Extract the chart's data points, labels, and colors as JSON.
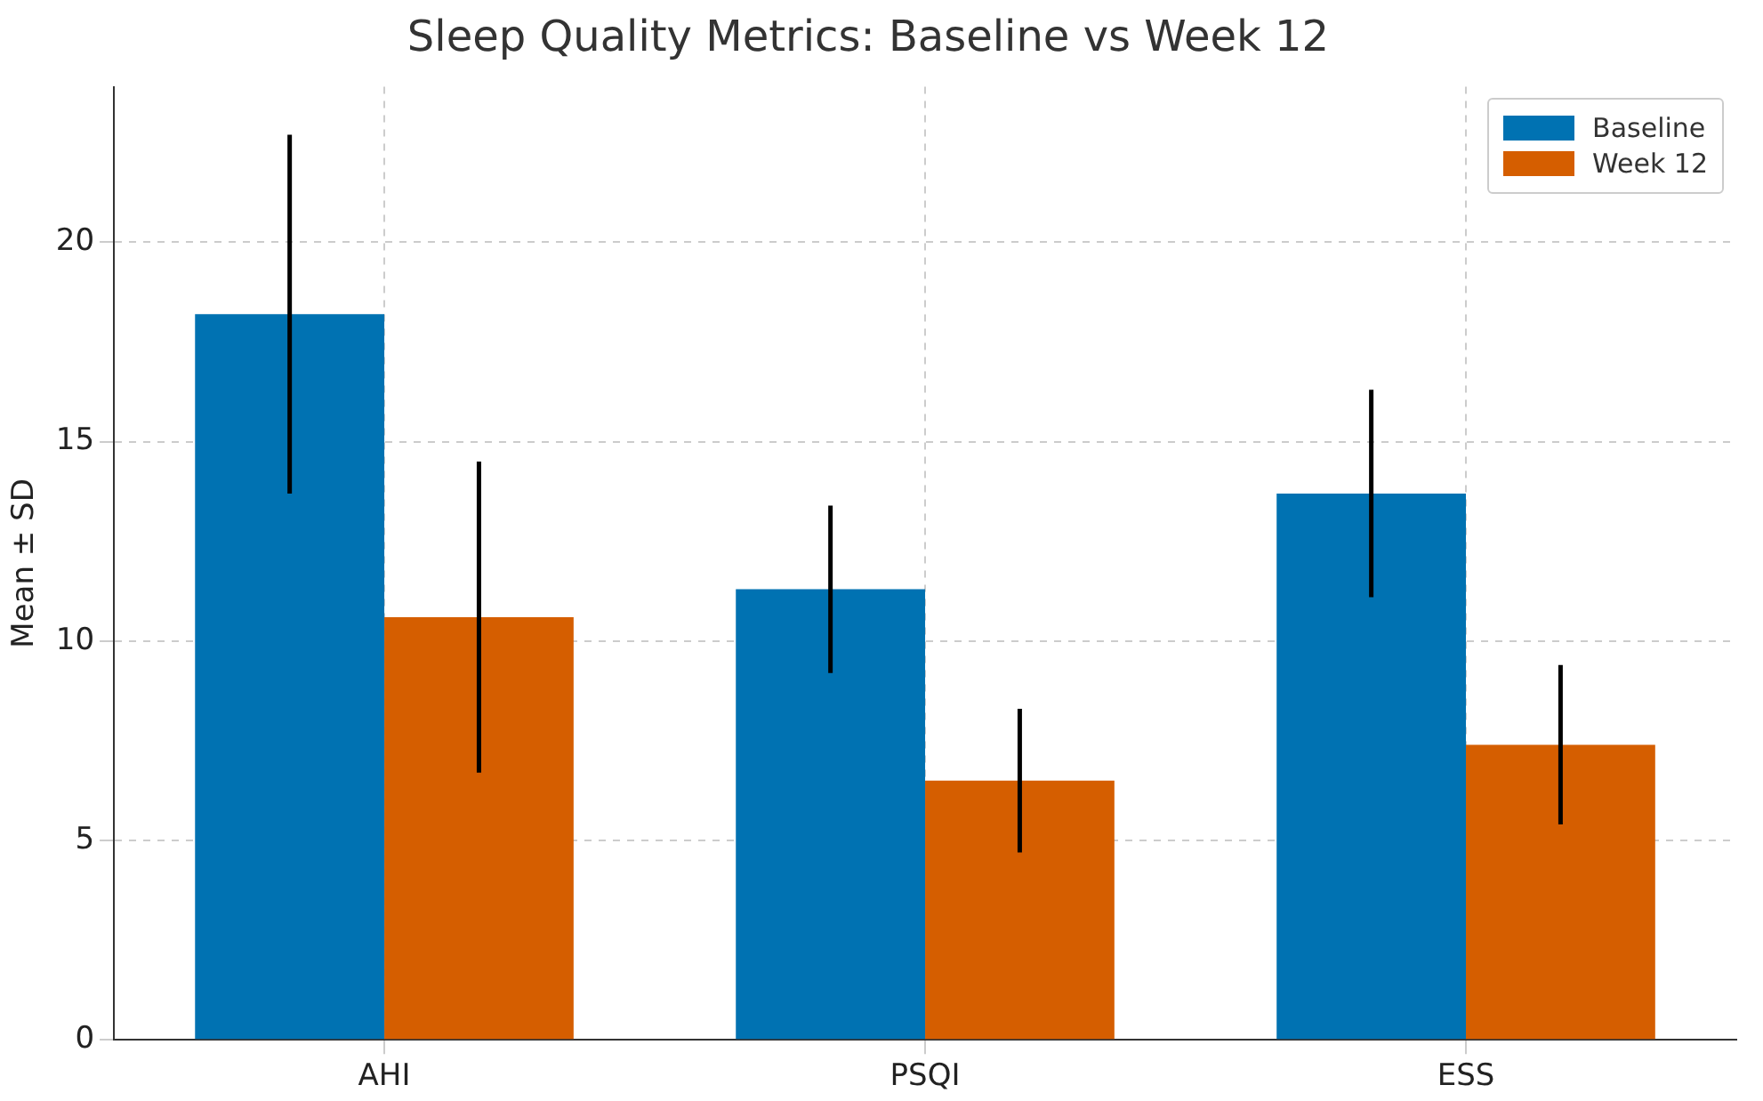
{
  "chart_data": {
    "type": "bar",
    "title": "Sleep Quality Metrics: Baseline vs Week 12",
    "ylabel": "Mean ± SD",
    "categories": [
      "AHI",
      "PSQI",
      "ESS"
    ],
    "series": [
      {
        "name": "Baseline",
        "color": "#0072b2",
        "values": [
          18.2,
          11.3,
          13.7
        ],
        "errors": [
          4.5,
          2.1,
          2.6
        ]
      },
      {
        "name": "Week 12",
        "color": "#d55e00",
        "values": [
          10.6,
          6.5,
          7.4
        ],
        "errors": [
          3.9,
          1.8,
          2.0
        ]
      }
    ],
    "ylim": [
      0,
      23.9
    ],
    "yticks": [
      0,
      5,
      10,
      15,
      20
    ],
    "grid": true,
    "legend": "top right"
  }
}
